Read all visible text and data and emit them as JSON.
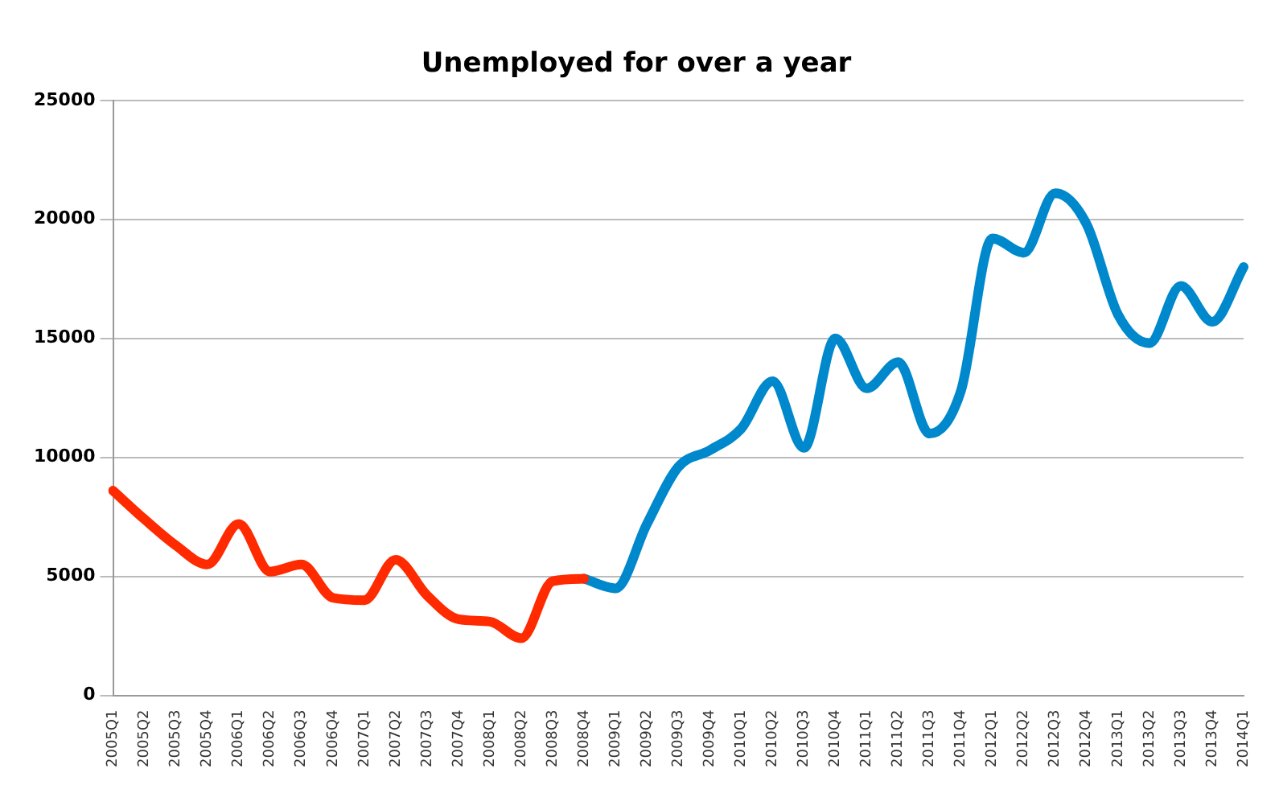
{
  "chart_data": {
    "type": "line",
    "title": "Unemployed for over a year",
    "categories": [
      "2005Q1",
      "2005Q2",
      "2005Q3",
      "2005Q4",
      "2006Q1",
      "2006Q2",
      "2006Q3",
      "2006Q4",
      "2007Q1",
      "2007Q2",
      "2007Q3",
      "2007Q4",
      "2008Q1",
      "2008Q2",
      "2008Q3",
      "2008Q4",
      "2009Q1",
      "2009Q2",
      "2009Q3",
      "2009Q4",
      "2010Q1",
      "2010Q2",
      "2010Q3",
      "2010Q4",
      "2011Q1",
      "2011Q2",
      "2011Q3",
      "2011Q4",
      "2012Q1",
      "2012Q2",
      "2012Q3",
      "2012Q4",
      "2013Q1",
      "2013Q2",
      "2013Q3",
      "2013Q4",
      "2014Q1"
    ],
    "series": [
      {
        "color": "#ff2a00",
        "values": [
          8600,
          7400,
          6300,
          5500,
          7200,
          5200,
          5500,
          4100,
          4000,
          5700,
          4200,
          3200,
          3100,
          2400,
          4800,
          4900,
          null,
          null,
          null,
          null,
          null,
          null,
          null,
          null,
          null,
          null,
          null,
          null,
          null,
          null,
          null,
          null,
          null,
          null,
          null,
          null,
          null
        ]
      },
      {
        "color": "#0088cc",
        "values": [
          null,
          null,
          null,
          null,
          null,
          null,
          null,
          null,
          null,
          null,
          null,
          null,
          null,
          null,
          null,
          4900,
          4500,
          7200,
          9600,
          10300,
          11200,
          13200,
          10400,
          15000,
          12900,
          14000,
          11000,
          12800,
          19200,
          18600,
          21100,
          19800,
          16000,
          14800,
          17200,
          15700,
          18000
        ]
      }
    ],
    "ylim": [
      0,
      25000
    ],
    "yticks": [
      0,
      5000,
      10000,
      15000,
      20000,
      25000
    ],
    "grid": "y",
    "legend": false,
    "marker": "none",
    "line_style": "solid"
  }
}
